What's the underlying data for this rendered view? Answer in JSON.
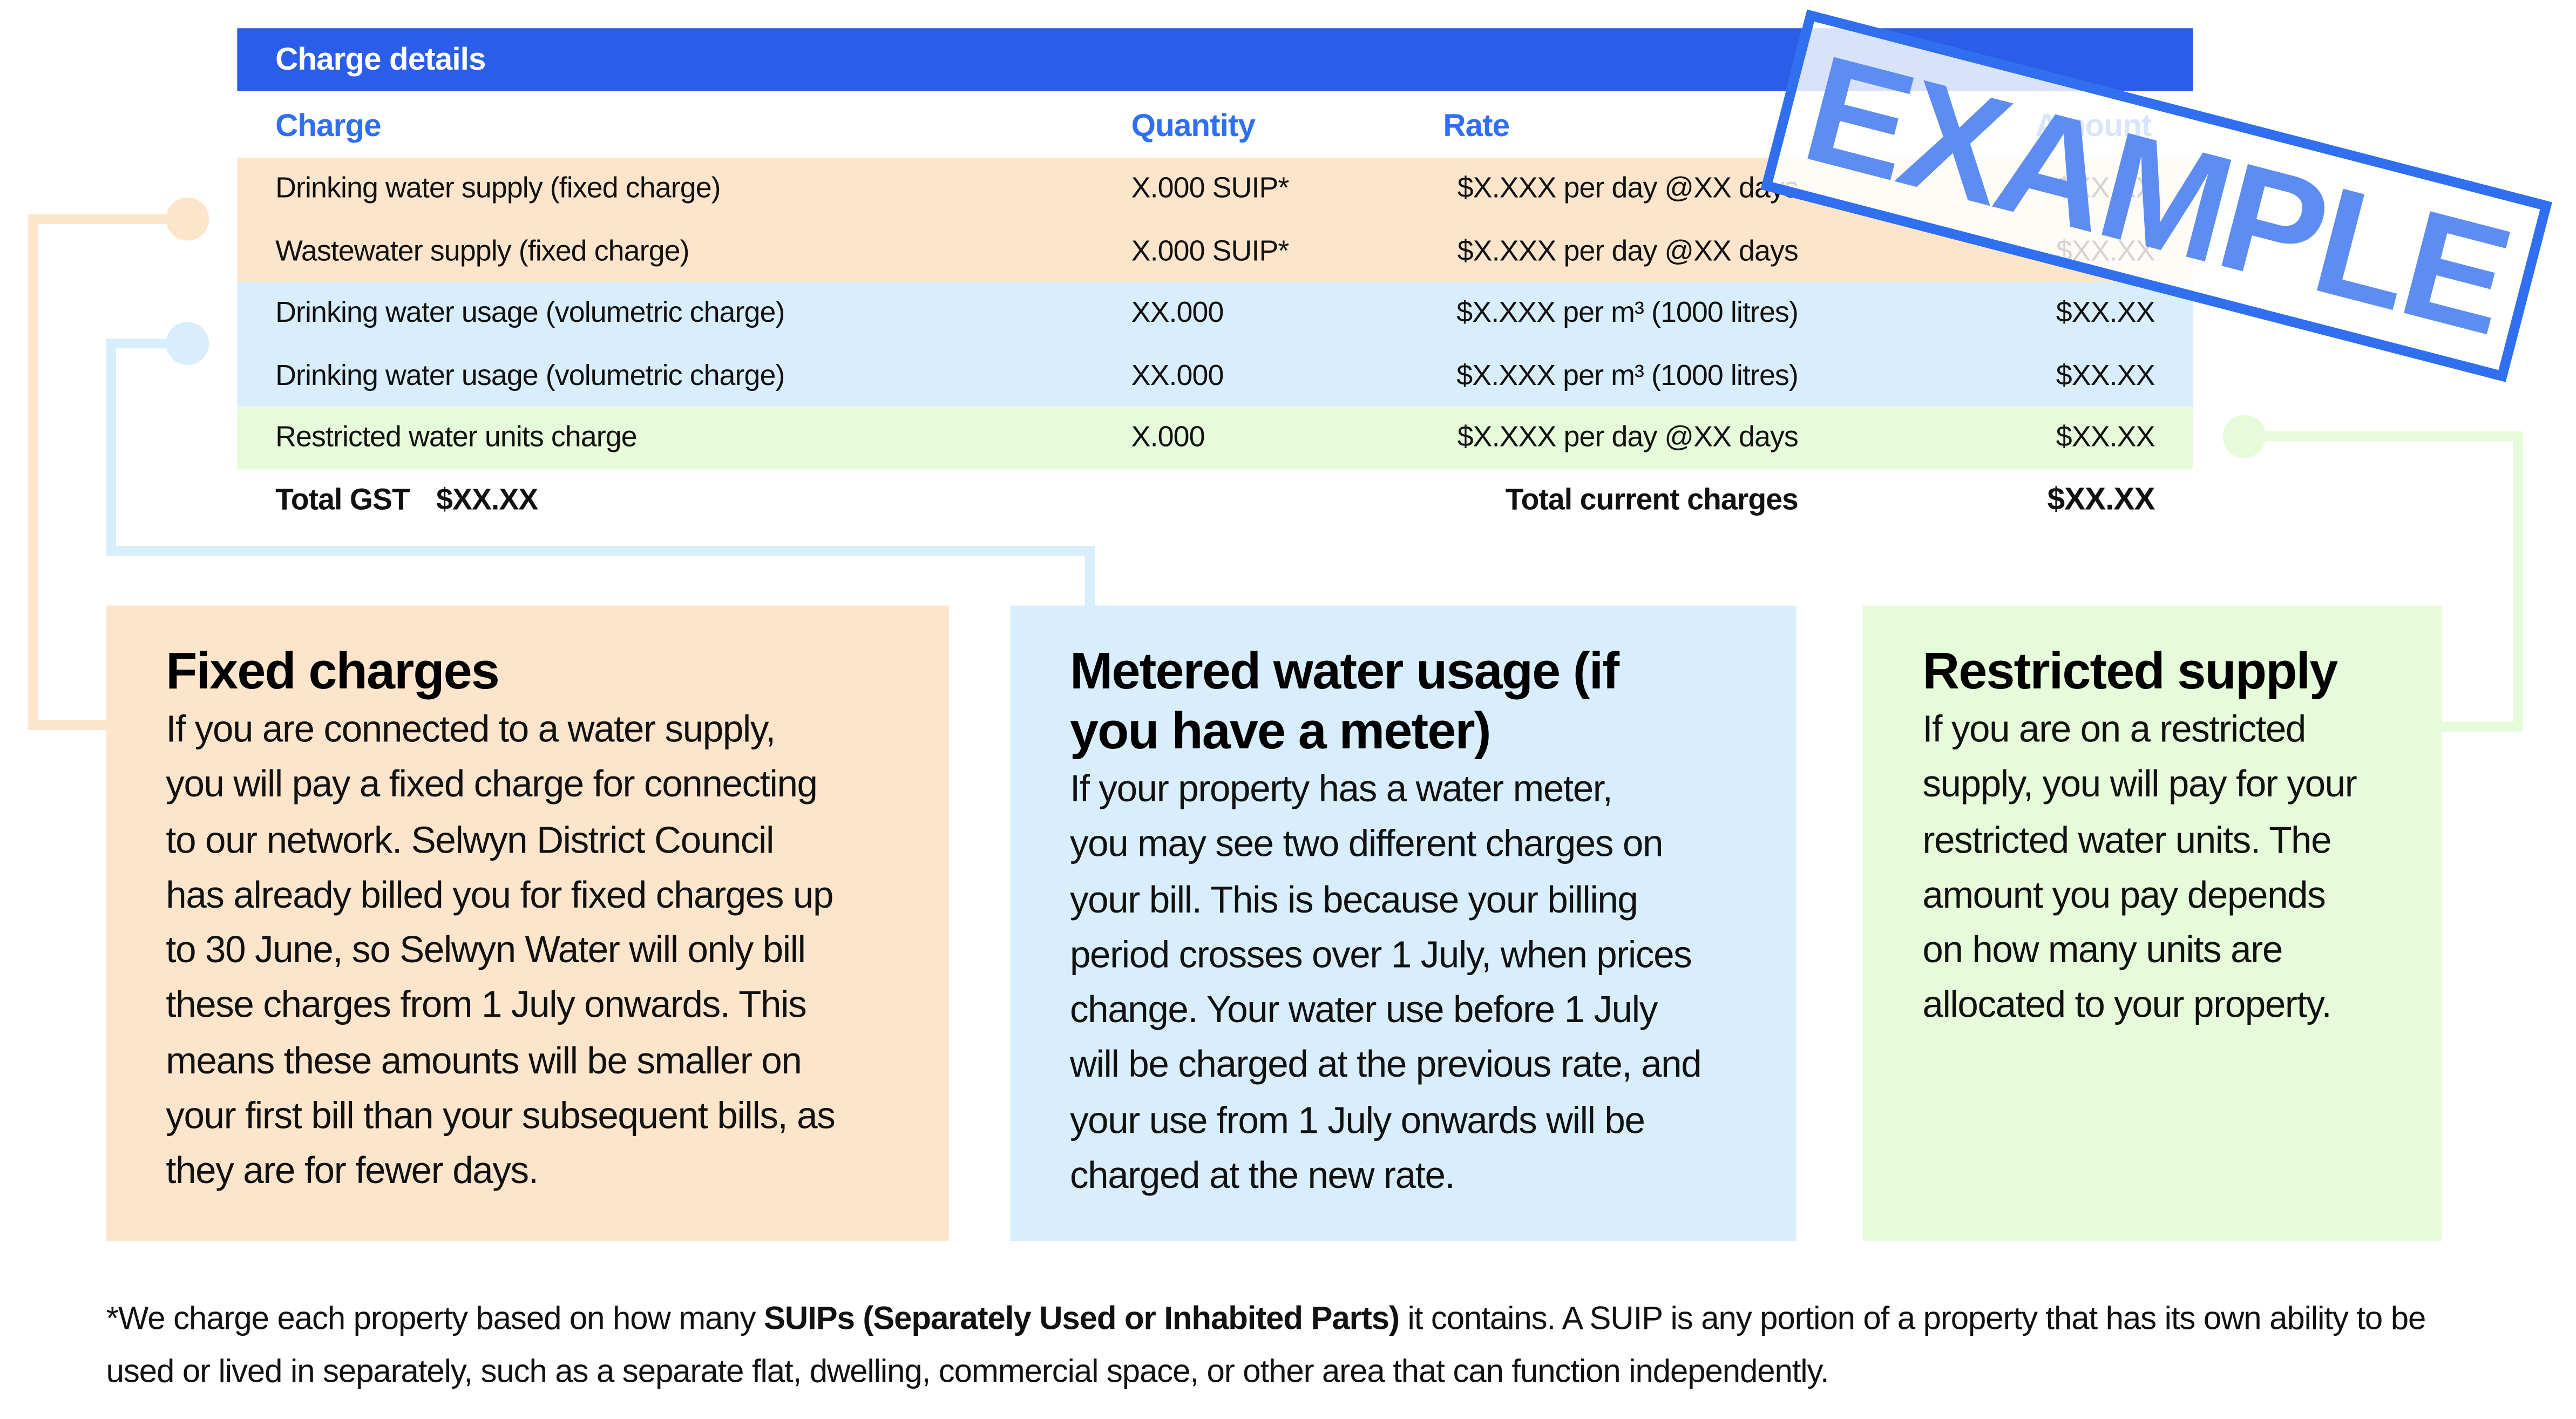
{
  "header": {
    "title": "Charge details"
  },
  "table": {
    "headers": [
      "Charge",
      "Quantity",
      "Rate",
      "Amount"
    ],
    "rows": [
      [
        "Drinking water supply (fixed charge)",
        "X.000 SUIP*",
        "$X.XXX per day @XX days",
        "$XX.XX"
      ],
      [
        "Wastewater supply (fixed charge)",
        "X.000 SUIP*",
        "$X.XXX per day @XX days",
        "$XX.XX"
      ],
      [
        "Drinking water usage (volumetric charge)",
        "XX.000",
        "$X.XXX per m³ (1000 litres)",
        "$XX.XX"
      ],
      [
        "Drinking water usage (volumetric charge)",
        "XX.000",
        "$X.XXX per m³ (1000 litres)",
        "$XX.XX"
      ],
      [
        "Restricted water units charge",
        "X.000",
        "$X.XXX per day @XX days",
        "$XX.XX"
      ]
    ],
    "total_gst_label": "Total GST",
    "total_gst_value": "$XX.XX",
    "total_label": "Total current charges",
    "total_value": "$XX.XX"
  },
  "stamp": "EXAMPLE",
  "boxes": [
    {
      "title": "Fixed charges",
      "body": [
        "If you are connected to a water supply,",
        "you will pay a fixed charge for connecting",
        "to our network. Selwyn District Council",
        "has already billed you for fixed charges up",
        "to 30 June, so Selwyn Water will only bill",
        "these charges from 1 July onwards. This",
        "means these amounts will be smaller on",
        "your first bill than your subsequent bills, as",
        "they are for fewer days."
      ]
    },
    {
      "title": "Metered water usage (if you have a meter)",
      "body": [
        "If your property has a water meter,",
        "you may see two different charges on",
        "your bill. This is because your billing",
        "period crosses over 1 July, when prices",
        "change. Your water use before 1 July",
        "will be charged at the previous rate, and",
        "your use from 1 July onwards will be",
        "charged at the new rate."
      ]
    },
    {
      "title": "Restricted supply",
      "body": [
        "If you are on a restricted",
        "supply, you will pay for your",
        "restricted water units. The",
        "amount you pay depends",
        "on how many units are",
        "allocated to your property."
      ]
    }
  ],
  "footnote": {
    "before": "*We charge each property based on how many ",
    "bold": "SUIPs (Separately Used or Inhabited Parts)",
    "after": " it contains. A SUIP is any portion of a property that has its own ability to be used or lived in separately, such as a separate flat, dwelling, commercial space, or other area that can function independently."
  }
}
